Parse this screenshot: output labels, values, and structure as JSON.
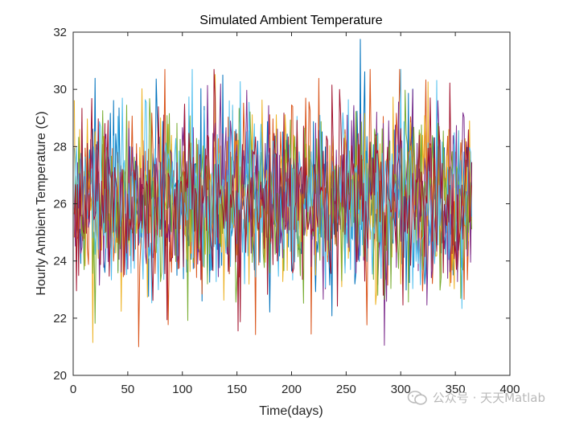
{
  "chart_data": {
    "type": "line",
    "title": "Simulated Ambient Temperature",
    "xlabel": "Time(days)",
    "ylabel": "Hourly Ambient Temperature (C)",
    "xlim": [
      0,
      400
    ],
    "ylim": [
      20,
      32
    ],
    "xticks": [
      0,
      50,
      100,
      150,
      200,
      250,
      300,
      350,
      400
    ],
    "yticks": [
      20,
      22,
      24,
      26,
      28,
      30,
      32
    ],
    "grid": false,
    "box": true,
    "series_count": 7,
    "samples_per_series": 365,
    "x_range": [
      1,
      365
    ],
    "mean": 26.2,
    "std": 1.55,
    "extremes": [
      {
        "x": 263,
        "y": 31.75
      },
      {
        "x": 60,
        "y": 21.0
      },
      {
        "x": 18,
        "y": 21.15
      },
      {
        "x": 285,
        "y": 21.05
      }
    ],
    "series": [
      {
        "color": "#0072BD"
      },
      {
        "color": "#D95319"
      },
      {
        "color": "#EDB120"
      },
      {
        "color": "#7E2F8E"
      },
      {
        "color": "#77AC30"
      },
      {
        "color": "#4DBEEE"
      },
      {
        "color": "#A2142F"
      }
    ]
  },
  "watermark": {
    "text": "公众号 · 天天Matlab",
    "icon": "wechat-logo-icon"
  }
}
